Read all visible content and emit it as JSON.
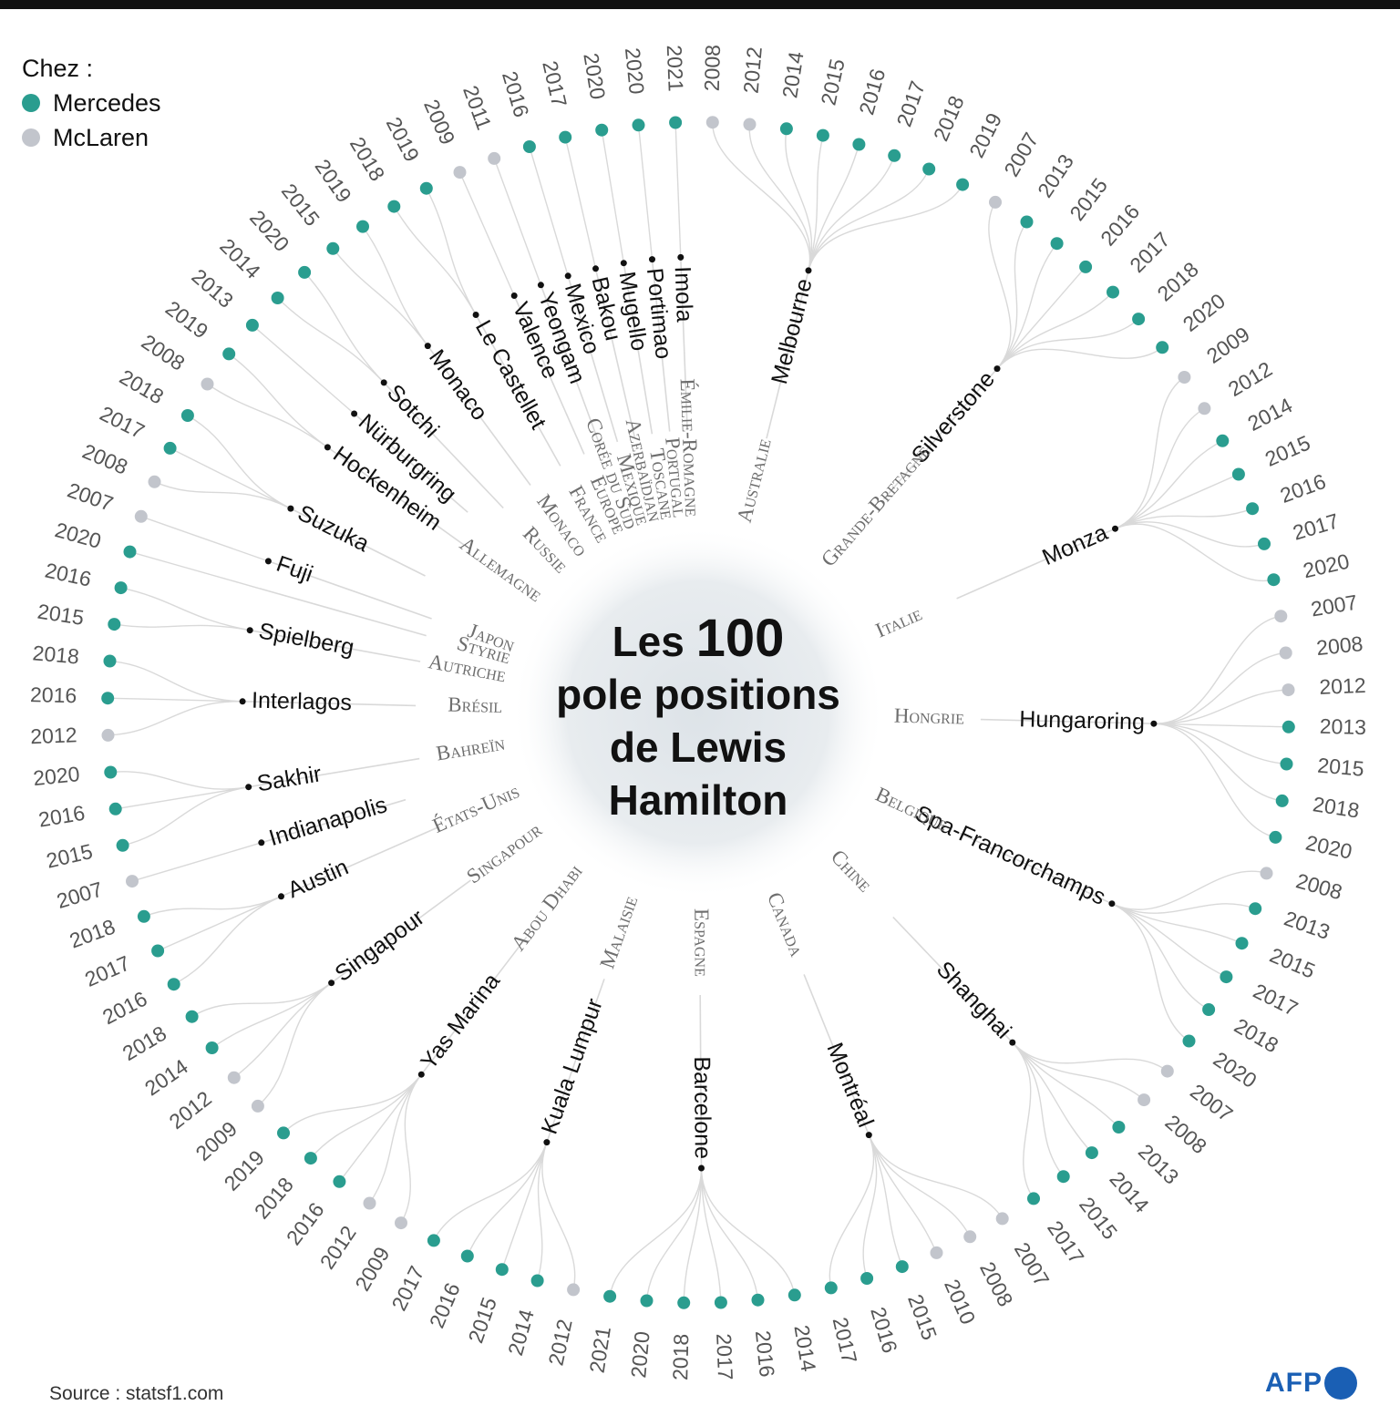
{
  "title": {
    "line1_prefix": "Les ",
    "line1_number": "100",
    "line2": "pole positions",
    "line3": "de Lewis",
    "line4": "Hamilton"
  },
  "legend": {
    "heading": "Chez :",
    "items": [
      {
        "label": "Mercedes",
        "color": "#2a9d8f"
      },
      {
        "label": "McLaren",
        "color": "#c2c5cc"
      }
    ]
  },
  "source": "Source : statsf1.com",
  "logo": "AFP",
  "colors": {
    "mercedes": "#2a9d8f",
    "mclaren": "#c2c5cc",
    "branch": "#d9d9d9",
    "country": "#6e6e6e"
  },
  "chart_data": {
    "type": "radial-tree",
    "groups": [
      {
        "country": "Australie",
        "city": "Melbourne",
        "poles": [
          {
            "year": "2008",
            "team": "McLaren"
          },
          {
            "year": "2012",
            "team": "McLaren"
          },
          {
            "year": "2014",
            "team": "Mercedes"
          },
          {
            "year": "2015",
            "team": "Mercedes"
          },
          {
            "year": "2016",
            "team": "Mercedes"
          },
          {
            "year": "2017",
            "team": "Mercedes"
          },
          {
            "year": "2018",
            "team": "Mercedes"
          },
          {
            "year": "2019",
            "team": "Mercedes"
          }
        ]
      },
      {
        "country": "Grande-Bretagne",
        "city": "Silverstone",
        "poles": [
          {
            "year": "2007",
            "team": "McLaren"
          },
          {
            "year": "2013",
            "team": "Mercedes"
          },
          {
            "year": "2015",
            "team": "Mercedes"
          },
          {
            "year": "2016",
            "team": "Mercedes"
          },
          {
            "year": "2017",
            "team": "Mercedes"
          },
          {
            "year": "2018",
            "team": "Mercedes"
          },
          {
            "year": "2020",
            "team": "Mercedes"
          }
        ]
      },
      {
        "country": "Italie",
        "city": "Monza",
        "poles": [
          {
            "year": "2009",
            "team": "McLaren"
          },
          {
            "year": "2012",
            "team": "McLaren"
          },
          {
            "year": "2014",
            "team": "Mercedes"
          },
          {
            "year": "2015",
            "team": "Mercedes"
          },
          {
            "year": "2016",
            "team": "Mercedes"
          },
          {
            "year": "2017",
            "team": "Mercedes"
          },
          {
            "year": "2020",
            "team": "Mercedes"
          }
        ]
      },
      {
        "country": "Hongrie",
        "city": "Hungaroring",
        "poles": [
          {
            "year": "2007",
            "team": "McLaren"
          },
          {
            "year": "2008",
            "team": "McLaren"
          },
          {
            "year": "2012",
            "team": "McLaren"
          },
          {
            "year": "2013",
            "team": "Mercedes"
          },
          {
            "year": "2015",
            "team": "Mercedes"
          },
          {
            "year": "2018",
            "team": "Mercedes"
          },
          {
            "year": "2020",
            "team": "Mercedes"
          }
        ]
      },
      {
        "country": "Belgique",
        "city": "Spa-Francorchamps",
        "poles": [
          {
            "year": "2008",
            "team": "McLaren"
          },
          {
            "year": "2013",
            "team": "Mercedes"
          },
          {
            "year": "2015",
            "team": "Mercedes"
          },
          {
            "year": "2017",
            "team": "Mercedes"
          },
          {
            "year": "2018",
            "team": "Mercedes"
          },
          {
            "year": "2020",
            "team": "Mercedes"
          }
        ]
      },
      {
        "country": "Chine",
        "city": "Shanghai",
        "poles": [
          {
            "year": "2007",
            "team": "McLaren"
          },
          {
            "year": "2008",
            "team": "McLaren"
          },
          {
            "year": "2013",
            "team": "Mercedes"
          },
          {
            "year": "2014",
            "team": "Mercedes"
          },
          {
            "year": "2015",
            "team": "Mercedes"
          },
          {
            "year": "2017",
            "team": "Mercedes"
          }
        ]
      },
      {
        "country": "Canada",
        "city": "Montréal",
        "poles": [
          {
            "year": "2007",
            "team": "McLaren"
          },
          {
            "year": "2008",
            "team": "McLaren"
          },
          {
            "year": "2010",
            "team": "McLaren"
          },
          {
            "year": "2015",
            "team": "Mercedes"
          },
          {
            "year": "2016",
            "team": "Mercedes"
          },
          {
            "year": "2017",
            "team": "Mercedes"
          }
        ]
      },
      {
        "country": "Espagne",
        "city": "Barcelone",
        "poles": [
          {
            "year": "2014",
            "team": "Mercedes"
          },
          {
            "year": "2016",
            "team": "Mercedes"
          },
          {
            "year": "2017",
            "team": "Mercedes"
          },
          {
            "year": "2018",
            "team": "Mercedes"
          },
          {
            "year": "2020",
            "team": "Mercedes"
          },
          {
            "year": "2021",
            "team": "Mercedes"
          }
        ]
      },
      {
        "country": "Malaisie",
        "city": "Kuala Lumpur",
        "poles": [
          {
            "year": "2012",
            "team": "McLaren"
          },
          {
            "year": "2014",
            "team": "Mercedes"
          },
          {
            "year": "2015",
            "team": "Mercedes"
          },
          {
            "year": "2016",
            "team": "Mercedes"
          },
          {
            "year": "2017",
            "team": "Mercedes"
          }
        ]
      },
      {
        "country": "Abou Dhabi",
        "city": "Yas Marina",
        "poles": [
          {
            "year": "2009",
            "team": "McLaren"
          },
          {
            "year": "2012",
            "team": "McLaren"
          },
          {
            "year": "2016",
            "team": "Mercedes"
          },
          {
            "year": "2018",
            "team": "Mercedes"
          },
          {
            "year": "2019",
            "team": "Mercedes"
          }
        ]
      },
      {
        "country": "Singapour",
        "city": "Singapour",
        "poles": [
          {
            "year": "2009",
            "team": "McLaren"
          },
          {
            "year": "2012",
            "team": "McLaren"
          },
          {
            "year": "2014",
            "team": "Mercedes"
          },
          {
            "year": "2018",
            "team": "Mercedes"
          }
        ]
      },
      {
        "country": "États-Unis",
        "city": "Austin",
        "poles": [
          {
            "year": "2016",
            "team": "Mercedes"
          },
          {
            "year": "2017",
            "team": "Mercedes"
          },
          {
            "year": "2018",
            "team": "Mercedes"
          }
        ]
      },
      {
        "country": "",
        "city": "Indianapolis",
        "poles": [
          {
            "year": "2007",
            "team": "McLaren"
          }
        ]
      },
      {
        "country": "Bahreïn",
        "city": "Sakhir",
        "poles": [
          {
            "year": "2015",
            "team": "Mercedes"
          },
          {
            "year": "2016",
            "team": "Mercedes"
          },
          {
            "year": "2020",
            "team": "Mercedes"
          }
        ]
      },
      {
        "country": "Brésil",
        "city": "Interlagos",
        "poles": [
          {
            "year": "2012",
            "team": "McLaren"
          },
          {
            "year": "2016",
            "team": "Mercedes"
          },
          {
            "year": "2018",
            "team": "Mercedes"
          }
        ]
      },
      {
        "country": "Autriche",
        "city": "Spielberg",
        "poles": [
          {
            "year": "2015",
            "team": "Mercedes"
          },
          {
            "year": "2016",
            "team": "Mercedes"
          }
        ]
      },
      {
        "country": "Styrie",
        "city": "",
        "poles": [
          {
            "year": "2020",
            "team": "Mercedes"
          }
        ]
      },
      {
        "country": "Japon",
        "city": "Fuji",
        "poles": [
          {
            "year": "2007",
            "team": "McLaren"
          }
        ]
      },
      {
        "country": "",
        "city": "Suzuka",
        "poles": [
          {
            "year": "2008",
            "team": "McLaren"
          },
          {
            "year": "2017",
            "team": "Mercedes"
          },
          {
            "year": "2018",
            "team": "Mercedes"
          }
        ]
      },
      {
        "country": "Allemagne",
        "city": "Hockenheim",
        "poles": [
          {
            "year": "2008",
            "team": "McLaren"
          },
          {
            "year": "2019",
            "team": "Mercedes"
          }
        ]
      },
      {
        "country": "",
        "city": "Nürburgring",
        "poles": [
          {
            "year": "2013",
            "team": "Mercedes"
          }
        ]
      },
      {
        "country": "Russie",
        "city": "Sotchi",
        "poles": [
          {
            "year": "2014",
            "team": "Mercedes"
          },
          {
            "year": "2020",
            "team": "Mercedes"
          }
        ]
      },
      {
        "country": "Monaco",
        "city": "Monaco",
        "poles": [
          {
            "year": "2015",
            "team": "Mercedes"
          },
          {
            "year": "2019",
            "team": "Mercedes"
          }
        ]
      },
      {
        "country": "France",
        "city": "Le Castellet",
        "poles": [
          {
            "year": "2018",
            "team": "Mercedes"
          },
          {
            "year": "2019",
            "team": "Mercedes"
          }
        ]
      },
      {
        "country": "Europe",
        "city": "Valence",
        "poles": [
          {
            "year": "2009",
            "team": "McLaren"
          }
        ]
      },
      {
        "country": "Corée du Sud",
        "city": "Yeongam",
        "poles": [
          {
            "year": "2011",
            "team": "McLaren"
          }
        ]
      },
      {
        "country": "Mexique",
        "city": "Mexico",
        "poles": [
          {
            "year": "2016",
            "team": "Mercedes"
          }
        ]
      },
      {
        "country": "Azerbaïdjan",
        "city": "Bakou",
        "poles": [
          {
            "year": "2017",
            "team": "Mercedes"
          }
        ]
      },
      {
        "country": "Toscane",
        "city": "Mugello",
        "poles": [
          {
            "year": "2020",
            "team": "Mercedes"
          }
        ]
      },
      {
        "country": "Portugal",
        "city": "Portimao",
        "poles": [
          {
            "year": "2020",
            "team": "Mercedes"
          }
        ]
      },
      {
        "country": "Émilie-Romagne",
        "city": "Imola",
        "poles": [
          {
            "year": "2021",
            "team": "Mercedes"
          }
        ]
      }
    ]
  }
}
